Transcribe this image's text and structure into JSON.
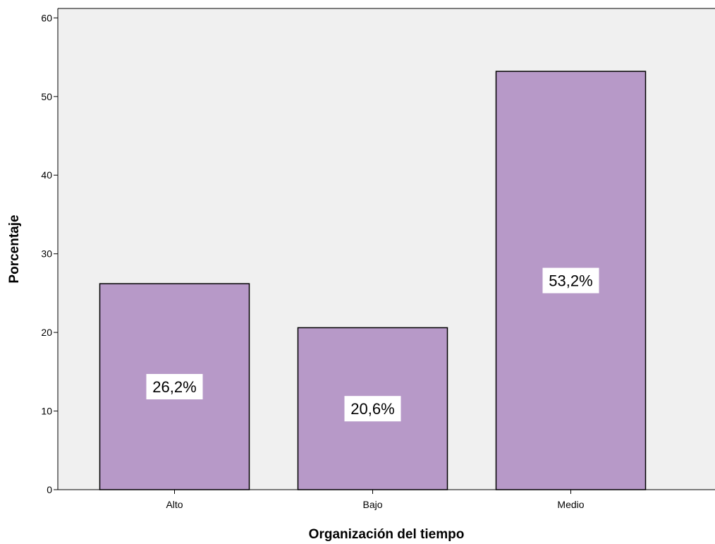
{
  "chart_data": {
    "type": "bar",
    "categories": [
      "Alto",
      "Bajo",
      "Medio"
    ],
    "values": [
      26.2,
      20.6,
      53.2
    ],
    "data_labels": [
      "26,2%",
      "20,6%",
      "53,2%"
    ],
    "xlabel": "Organización del tiempo",
    "ylabel": "Porcentaje",
    "ylim": [
      0,
      60
    ],
    "yticks": [
      0,
      10,
      20,
      30,
      40,
      50,
      60
    ],
    "grid": false,
    "colors": {
      "bar": "#b799c8",
      "bar_border": "#000000",
      "plot_background": "#f0f0f0",
      "page_background": "#ffffff",
      "label_box": "#ffffff"
    }
  }
}
